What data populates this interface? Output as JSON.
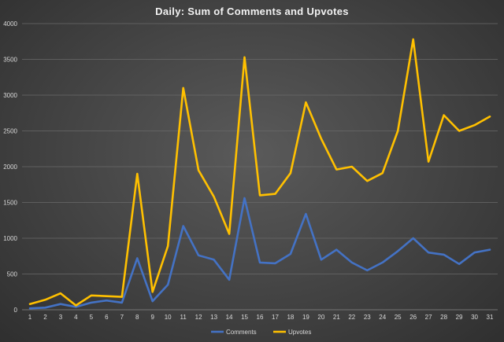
{
  "chart_data": {
    "type": "line",
    "title": "Daily:  Sum of Comments  and Upvotes",
    "xlabel": "",
    "ylabel": "",
    "categories": [
      "1",
      "2",
      "3",
      "4",
      "5",
      "6",
      "7",
      "8",
      "9",
      "10",
      "11",
      "12",
      "13",
      "14",
      "15",
      "16",
      "17",
      "18",
      "19",
      "20",
      "21",
      "22",
      "23",
      "24",
      "25",
      "26",
      "27",
      "28",
      "29",
      "30",
      "31"
    ],
    "ylim": [
      0,
      4000
    ],
    "yticks": [
      "0",
      "500",
      "1000",
      "1500",
      "2000",
      "2500",
      "3000",
      "3500",
      "4000"
    ],
    "grid": true,
    "legend_position": "bottom",
    "series": [
      {
        "name": "Comments",
        "color": "#4472c4",
        "values": [
          20,
          30,
          80,
          40,
          100,
          130,
          100,
          720,
          120,
          350,
          1170,
          760,
          700,
          420,
          1560,
          660,
          650,
          780,
          1340,
          700,
          840,
          660,
          550,
          660,
          820,
          1000,
          800,
          770,
          640,
          800,
          840
        ]
      },
      {
        "name": "Upvotes",
        "color": "#ffc000",
        "values": [
          80,
          140,
          230,
          60,
          200,
          190,
          180,
          1900,
          250,
          890,
          3100,
          1950,
          1580,
          1060,
          3530,
          1600,
          1620,
          1910,
          2900,
          2390,
          1960,
          2000,
          1800,
          1910,
          2500,
          3780,
          2070,
          2720,
          2500,
          2580,
          2700
        ]
      }
    ]
  }
}
